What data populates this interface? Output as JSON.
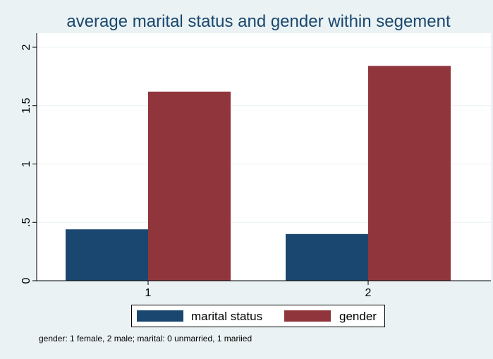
{
  "colors": {
    "background": "#eaf2f3",
    "plot_background": "#ffffff",
    "grid": "#eaf2f3",
    "title": "#1a476f"
  },
  "chart_data": {
    "type": "bar",
    "title": "average marital status and gender within segement",
    "xlabel": "",
    "ylabel": "",
    "categories": [
      "1",
      "2"
    ],
    "series": [
      {
        "name": "marital status",
        "color": "#1a476f",
        "values": [
          0.44,
          0.4
        ]
      },
      {
        "name": "gender",
        "color": "#90353b",
        "values": [
          1.62,
          1.84
        ]
      }
    ],
    "ylim": [
      0,
      2
    ],
    "yticks": [
      0,
      0.5,
      1,
      1.5,
      2
    ],
    "ytick_labels": [
      "0",
      ".5",
      "1",
      "1.5",
      "2"
    ],
    "grid": true,
    "legend_position": "bottom",
    "note": "gender: 1 female, 2 male; marital: 0 unmarried, 1 mariied"
  }
}
